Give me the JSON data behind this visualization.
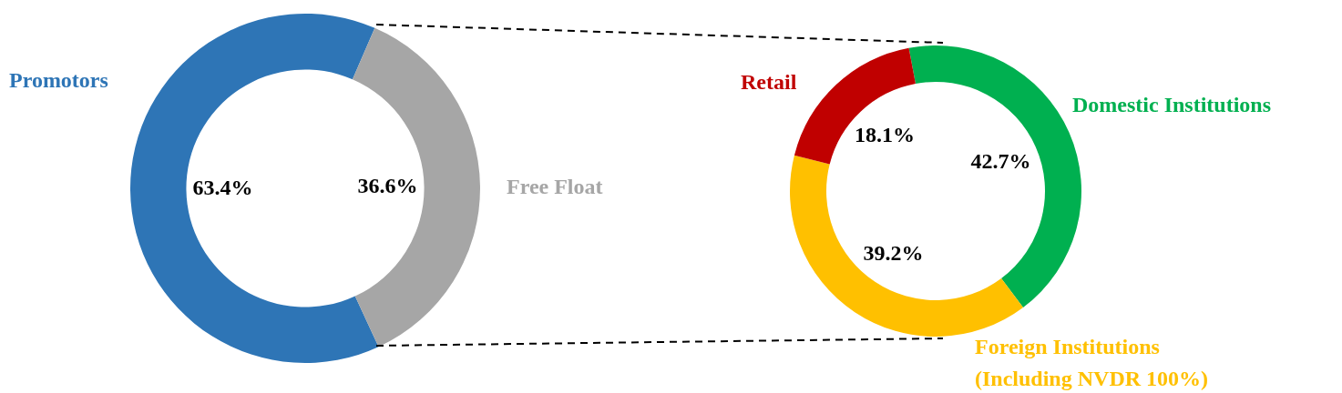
{
  "chart_data": [
    {
      "type": "donut",
      "categories": [
        "Promotors",
        "Free Float"
      ],
      "values": [
        63.4,
        36.6
      ],
      "colors": [
        "#2e75b6",
        "#a6a6a6"
      ],
      "value_labels": [
        "63.4%",
        "36.6%"
      ],
      "legend": false
    },
    {
      "type": "donut",
      "categories": [
        "Domestic Institutions",
        "Foreign Institutions\n(Including NVDR 100%)",
        "Retail"
      ],
      "values": [
        42.7,
        39.2,
        18.1
      ],
      "colors": [
        "#00b050",
        "#ffc000",
        "#c00000"
      ],
      "value_labels": [
        "42.7%",
        "39.2%",
        "18.1%"
      ],
      "legend": false
    }
  ]
}
